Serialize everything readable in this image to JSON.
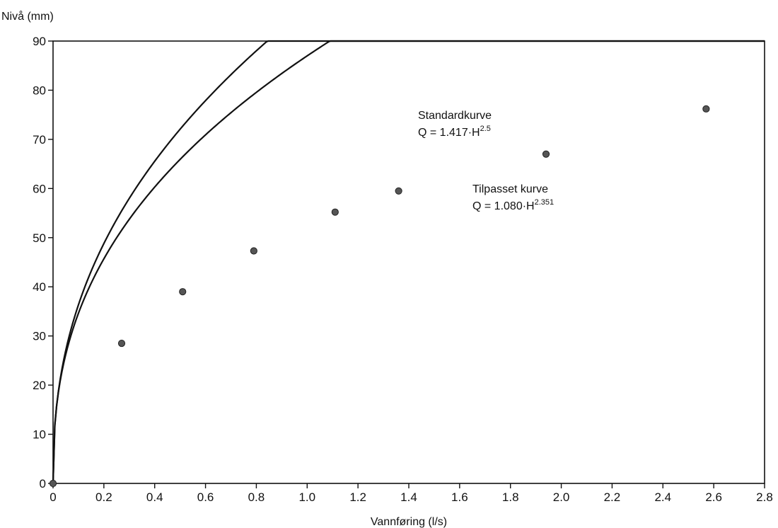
{
  "chart_data": {
    "type": "scatter",
    "title": "",
    "xlabel": "Vannføring (l/s)",
    "ylabel": "Nivå (mm)",
    "xlim": [
      0,
      2.8
    ],
    "ylim": [
      0,
      90
    ],
    "x_ticks": [
      "0",
      "0.2",
      "0.4",
      "0.6",
      "0.8",
      "1.0",
      "1.2",
      "1.4",
      "1.6",
      "1.8",
      "2.0",
      "2.2",
      "2.4",
      "2.6",
      "2.8"
    ],
    "y_ticks": [
      "0",
      "10",
      "20",
      "30",
      "40",
      "50",
      "60",
      "70",
      "80",
      "90"
    ],
    "grid": false,
    "points": {
      "x": [
        0.0,
        0.27,
        0.51,
        0.79,
        1.11,
        1.36,
        1.94,
        2.57
      ],
      "y": [
        0.0,
        28.5,
        39.0,
        47.3,
        55.2,
        59.5,
        67.0,
        76.2
      ]
    },
    "curves": [
      {
        "label": "Standardkurve",
        "equation_base": "Q = 1.417·H",
        "equation_exp": "2.5",
        "coefficient": 1.417,
        "exponent": 2.5
      },
      {
        "label": "Tilpasset kurve",
        "equation_base": "Q = 1.080·H",
        "equation_exp": "2.351",
        "coefficient": 1.08,
        "exponent": 2.351
      }
    ],
    "colors": {
      "line": "#111111",
      "marker": "#555555"
    }
  }
}
